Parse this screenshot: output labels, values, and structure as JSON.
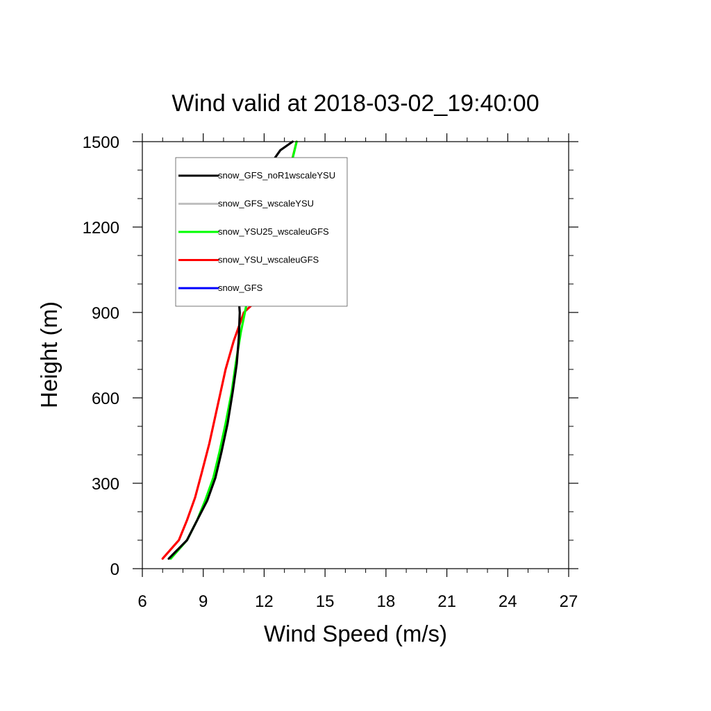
{
  "chart_data": {
    "type": "line",
    "title": "Wind valid at 2018-03-02_19:40:00",
    "xlabel": "Wind Speed (m/s)",
    "ylabel": "Height (m)",
    "xlim": [
      6,
      27
    ],
    "ylim": [
      0,
      1500
    ],
    "xticks": [
      6,
      9,
      12,
      15,
      18,
      21,
      24,
      27
    ],
    "yticks": [
      0,
      300,
      600,
      900,
      1200,
      1500
    ],
    "grid": false,
    "legend_position": "top-left",
    "series": [
      {
        "name": "snow_GFS_noR1wscaleYSU",
        "color": "#000000",
        "points": [
          [
            7.3,
            35
          ],
          [
            8.2,
            100
          ],
          [
            8.7,
            170
          ],
          [
            9.2,
            240
          ],
          [
            9.6,
            320
          ],
          [
            9.9,
            410
          ],
          [
            10.2,
            510
          ],
          [
            10.45,
            620
          ],
          [
            10.65,
            720
          ],
          [
            10.75,
            810
          ],
          [
            10.8,
            900
          ],
          [
            10.7,
            1000
          ],
          [
            10.6,
            1070
          ],
          [
            10.45,
            1190
          ],
          [
            11.2,
            1300
          ],
          [
            12.1,
            1400
          ],
          [
            12.8,
            1470
          ],
          [
            13.4,
            1500
          ]
        ]
      },
      {
        "name": "snow_GFS_wscaleYSU",
        "color": "#c0c0c0",
        "points": []
      },
      {
        "name": "snow_YSU25_wscaleuGFS",
        "color": "#00ff00",
        "points": [
          [
            7.4,
            35
          ],
          [
            8.2,
            100
          ],
          [
            8.7,
            170
          ],
          [
            9.1,
            240
          ],
          [
            9.5,
            320
          ],
          [
            9.8,
            410
          ],
          [
            10.1,
            510
          ],
          [
            10.4,
            620
          ],
          [
            10.6,
            720
          ],
          [
            10.85,
            830
          ],
          [
            11.05,
            900
          ],
          [
            11.3,
            990
          ],
          [
            11.8,
            1110
          ],
          [
            12.5,
            1180
          ],
          [
            13.0,
            1290
          ],
          [
            13.3,
            1410
          ],
          [
            13.6,
            1500
          ]
        ]
      },
      {
        "name": "snow_YSU_wscaleuGFS",
        "color": "#ff0000",
        "points": [
          [
            7.0,
            35
          ],
          [
            7.8,
            100
          ],
          [
            8.2,
            170
          ],
          [
            8.6,
            250
          ],
          [
            8.9,
            330
          ],
          [
            9.3,
            440
          ],
          [
            9.7,
            570
          ],
          [
            10.1,
            700
          ],
          [
            10.5,
            800
          ],
          [
            11.0,
            900
          ],
          [
            11.9,
            960
          ],
          [
            12.6,
            1000
          ],
          [
            13.1,
            1080
          ],
          [
            13.05,
            1190
          ],
          [
            13.0,
            1290
          ],
          [
            13.25,
            1400
          ],
          [
            13.6,
            1500
          ]
        ]
      },
      {
        "name": "snow_GFS",
        "color": "#0000ff",
        "points": []
      }
    ]
  }
}
